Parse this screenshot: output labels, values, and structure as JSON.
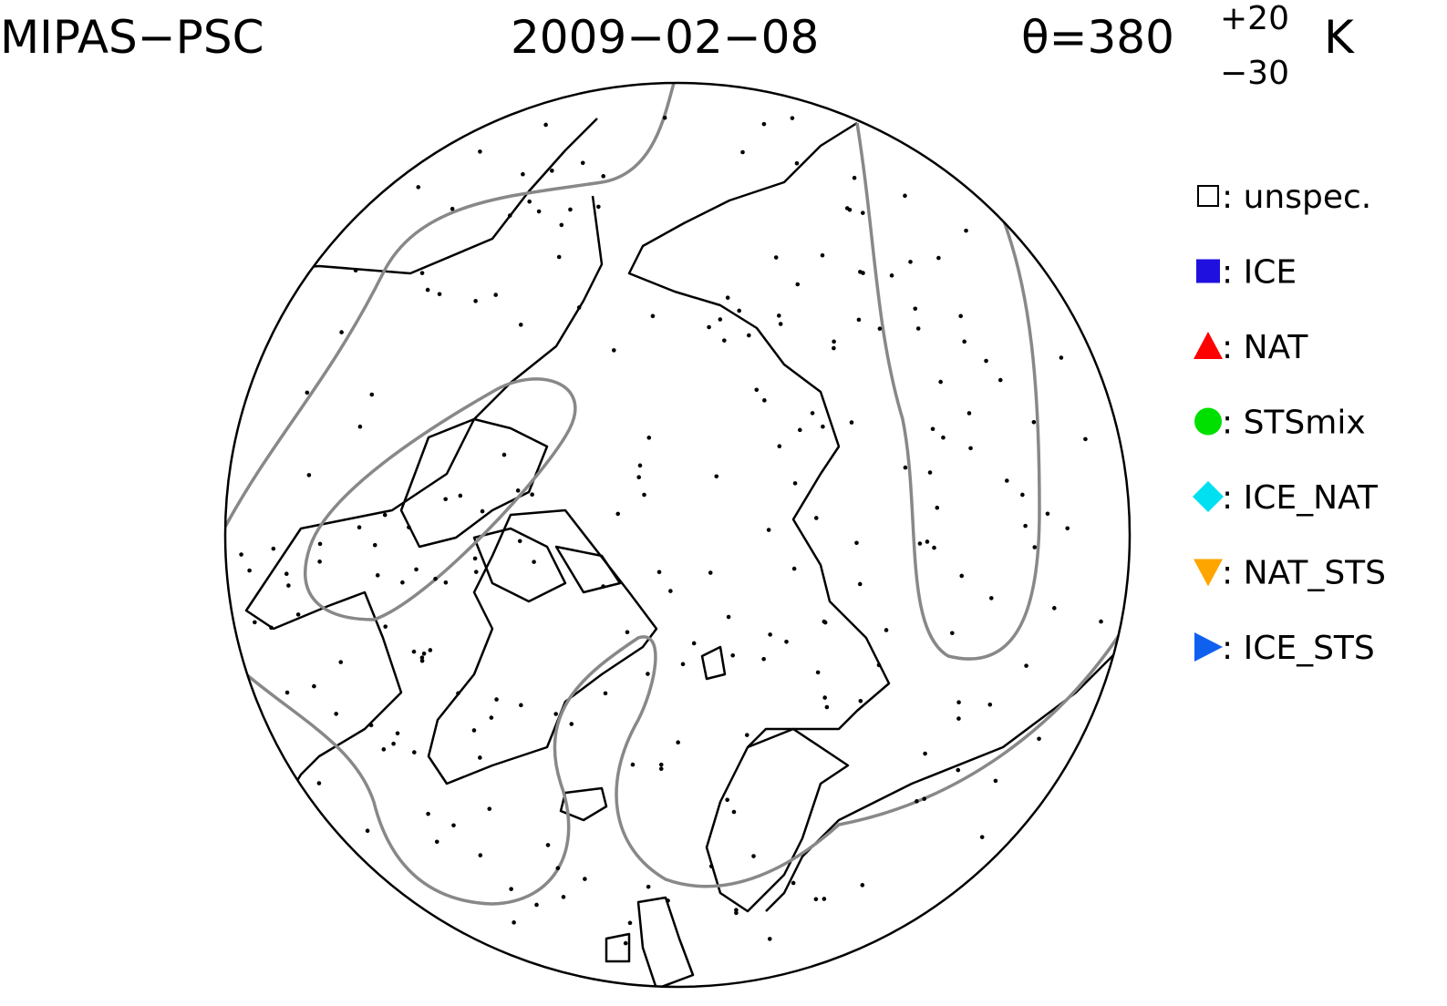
{
  "header": {
    "instrument": "MIPAS−PSC",
    "date": "2009−02−08",
    "theta": "θ=380",
    "theta_plus": "+20",
    "theta_minus": "−30",
    "unit": "K"
  },
  "legend": [
    {
      "label": ": unspec.",
      "color": "#000000",
      "symbol": "open-square"
    },
    {
      "label": ": ICE",
      "color": "#2010e0",
      "symbol": "square"
    },
    {
      "label": ": NAT",
      "color": "#ff0000",
      "symbol": "triangle-up"
    },
    {
      "label": ": STSmix",
      "color": "#00e000",
      "symbol": "circle"
    },
    {
      "label": ": ICE_NAT",
      "color": "#00e0f0",
      "symbol": "diamond"
    },
    {
      "label": ": NAT_STS",
      "color": "#ffa500",
      "symbol": "triangle-down"
    },
    {
      "label": ": ICE_STS",
      "color": "#1060f0",
      "symbol": "triangle-right"
    }
  ]
}
